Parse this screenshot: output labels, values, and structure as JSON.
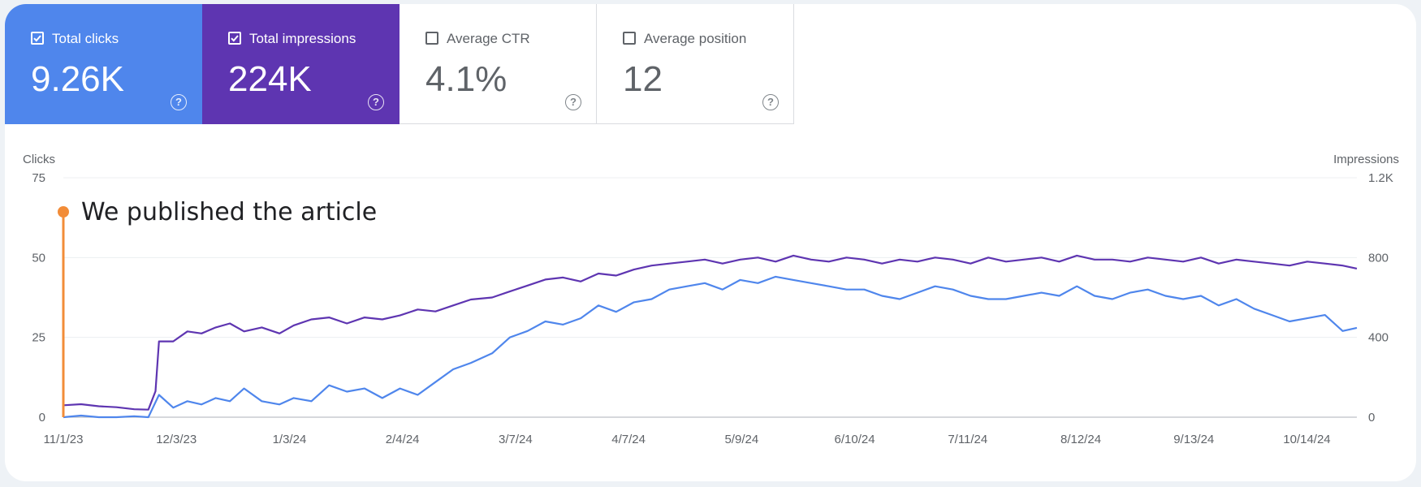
{
  "metrics": [
    {
      "label": "Total clicks",
      "value": "9.26K",
      "selected": true,
      "color": "#4f86ec"
    },
    {
      "label": "Total impressions",
      "value": "224K",
      "selected": true,
      "color": "#5e35b1"
    },
    {
      "label": "Average CTR",
      "value": "4.1%",
      "selected": false
    },
    {
      "label": "Average position",
      "value": "12",
      "selected": false
    }
  ],
  "help_glyph": "?",
  "chart_data": {
    "type": "line",
    "title": "",
    "left_axis": {
      "label": "Clicks",
      "ticks": [
        "0",
        "25",
        "50",
        "75"
      ],
      "range": [
        0,
        75
      ]
    },
    "right_axis": {
      "label": "Impressions",
      "ticks": [
        "0",
        "400",
        "800",
        "1.2K"
      ],
      "range": [
        0,
        1200
      ]
    },
    "x_ticks": [
      "11/1/23",
      "12/3/23",
      "1/3/24",
      "2/4/24",
      "3/7/24",
      "4/7/24",
      "5/9/24",
      "6/10/24",
      "7/11/24",
      "8/12/24",
      "9/13/24",
      "10/14/24"
    ],
    "x_range": [
      "2023-11-01",
      "2024-10-31"
    ],
    "annotation": {
      "date": "2023-11-01",
      "text": "We published the article",
      "color": "#f28c38"
    },
    "series": [
      {
        "name": "Total impressions",
        "axis": "right",
        "color": "#5e35b1",
        "points": [
          [
            "2023-11-01",
            60
          ],
          [
            "2023-11-06",
            65
          ],
          [
            "2023-11-11",
            55
          ],
          [
            "2023-11-16",
            50
          ],
          [
            "2023-11-21",
            40
          ],
          [
            "2023-11-25",
            38
          ],
          [
            "2023-11-27",
            130
          ],
          [
            "2023-11-28",
            380
          ],
          [
            "2023-12-02",
            380
          ],
          [
            "2023-12-06",
            430
          ],
          [
            "2023-12-10",
            420
          ],
          [
            "2023-12-14",
            450
          ],
          [
            "2023-12-18",
            470
          ],
          [
            "2023-12-22",
            430
          ],
          [
            "2023-12-27",
            450
          ],
          [
            "2024-01-01",
            420
          ],
          [
            "2024-01-05",
            460
          ],
          [
            "2024-01-10",
            490
          ],
          [
            "2024-01-15",
            500
          ],
          [
            "2024-01-20",
            470
          ],
          [
            "2024-01-25",
            500
          ],
          [
            "2024-01-30",
            490
          ],
          [
            "2024-02-04",
            510
          ],
          [
            "2024-02-09",
            540
          ],
          [
            "2024-02-14",
            530
          ],
          [
            "2024-02-19",
            560
          ],
          [
            "2024-02-24",
            590
          ],
          [
            "2024-03-01",
            600
          ],
          [
            "2024-03-06",
            630
          ],
          [
            "2024-03-11",
            660
          ],
          [
            "2024-03-16",
            690
          ],
          [
            "2024-03-21",
            700
          ],
          [
            "2024-03-26",
            680
          ],
          [
            "2024-03-31",
            720
          ],
          [
            "2024-04-05",
            710
          ],
          [
            "2024-04-10",
            740
          ],
          [
            "2024-04-15",
            760
          ],
          [
            "2024-04-20",
            770
          ],
          [
            "2024-04-25",
            780
          ],
          [
            "2024-04-30",
            790
          ],
          [
            "2024-05-05",
            770
          ],
          [
            "2024-05-10",
            790
          ],
          [
            "2024-05-15",
            800
          ],
          [
            "2024-05-20",
            780
          ],
          [
            "2024-05-25",
            810
          ],
          [
            "2024-05-30",
            790
          ],
          [
            "2024-06-04",
            780
          ],
          [
            "2024-06-09",
            800
          ],
          [
            "2024-06-14",
            790
          ],
          [
            "2024-06-19",
            770
          ],
          [
            "2024-06-24",
            790
          ],
          [
            "2024-06-29",
            780
          ],
          [
            "2024-07-04",
            800
          ],
          [
            "2024-07-09",
            790
          ],
          [
            "2024-07-14",
            770
          ],
          [
            "2024-07-19",
            800
          ],
          [
            "2024-07-24",
            780
          ],
          [
            "2024-07-29",
            790
          ],
          [
            "2024-08-03",
            800
          ],
          [
            "2024-08-08",
            780
          ],
          [
            "2024-08-13",
            810
          ],
          [
            "2024-08-18",
            790
          ],
          [
            "2024-08-23",
            790
          ],
          [
            "2024-08-28",
            780
          ],
          [
            "2024-09-02",
            800
          ],
          [
            "2024-09-07",
            790
          ],
          [
            "2024-09-12",
            780
          ],
          [
            "2024-09-17",
            800
          ],
          [
            "2024-09-22",
            770
          ],
          [
            "2024-09-27",
            790
          ],
          [
            "2024-10-02",
            780
          ],
          [
            "2024-10-07",
            770
          ],
          [
            "2024-10-12",
            760
          ],
          [
            "2024-10-17",
            780
          ],
          [
            "2024-10-22",
            770
          ],
          [
            "2024-10-27",
            760
          ],
          [
            "2024-10-31",
            745
          ]
        ]
      },
      {
        "name": "Total clicks",
        "axis": "left",
        "color": "#4f86ec",
        "points": [
          [
            "2023-11-01",
            0
          ],
          [
            "2023-11-06",
            0.5
          ],
          [
            "2023-11-11",
            0
          ],
          [
            "2023-11-16",
            0
          ],
          [
            "2023-11-21",
            0.3
          ],
          [
            "2023-11-25",
            0
          ],
          [
            "2023-11-28",
            7
          ],
          [
            "2023-12-02",
            3
          ],
          [
            "2023-12-06",
            5
          ],
          [
            "2023-12-10",
            4
          ],
          [
            "2023-12-14",
            6
          ],
          [
            "2023-12-18",
            5
          ],
          [
            "2023-12-22",
            9
          ],
          [
            "2023-12-27",
            5
          ],
          [
            "2024-01-01",
            4
          ],
          [
            "2024-01-05",
            6
          ],
          [
            "2024-01-10",
            5
          ],
          [
            "2024-01-15",
            10
          ],
          [
            "2024-01-20",
            8
          ],
          [
            "2024-01-25",
            9
          ],
          [
            "2024-01-30",
            6
          ],
          [
            "2024-02-04",
            9
          ],
          [
            "2024-02-09",
            7
          ],
          [
            "2024-02-14",
            11
          ],
          [
            "2024-02-19",
            15
          ],
          [
            "2024-02-24",
            17
          ],
          [
            "2024-03-01",
            20
          ],
          [
            "2024-03-06",
            25
          ],
          [
            "2024-03-11",
            27
          ],
          [
            "2024-03-16",
            30
          ],
          [
            "2024-03-21",
            29
          ],
          [
            "2024-03-26",
            31
          ],
          [
            "2024-03-31",
            35
          ],
          [
            "2024-04-05",
            33
          ],
          [
            "2024-04-10",
            36
          ],
          [
            "2024-04-15",
            37
          ],
          [
            "2024-04-20",
            40
          ],
          [
            "2024-04-25",
            41
          ],
          [
            "2024-04-30",
            42
          ],
          [
            "2024-05-05",
            40
          ],
          [
            "2024-05-10",
            43
          ],
          [
            "2024-05-15",
            42
          ],
          [
            "2024-05-20",
            44
          ],
          [
            "2024-05-25",
            43
          ],
          [
            "2024-05-30",
            42
          ],
          [
            "2024-06-04",
            41
          ],
          [
            "2024-06-09",
            40
          ],
          [
            "2024-06-14",
            40
          ],
          [
            "2024-06-19",
            38
          ],
          [
            "2024-06-24",
            37
          ],
          [
            "2024-06-29",
            39
          ],
          [
            "2024-07-04",
            41
          ],
          [
            "2024-07-09",
            40
          ],
          [
            "2024-07-14",
            38
          ],
          [
            "2024-07-19",
            37
          ],
          [
            "2024-07-24",
            37
          ],
          [
            "2024-07-29",
            38
          ],
          [
            "2024-08-03",
            39
          ],
          [
            "2024-08-08",
            38
          ],
          [
            "2024-08-13",
            41
          ],
          [
            "2024-08-18",
            38
          ],
          [
            "2024-08-23",
            37
          ],
          [
            "2024-08-28",
            39
          ],
          [
            "2024-09-02",
            40
          ],
          [
            "2024-09-07",
            38
          ],
          [
            "2024-09-12",
            37
          ],
          [
            "2024-09-17",
            38
          ],
          [
            "2024-09-22",
            35
          ],
          [
            "2024-09-27",
            37
          ],
          [
            "2024-10-02",
            34
          ],
          [
            "2024-10-07",
            32
          ],
          [
            "2024-10-12",
            30
          ],
          [
            "2024-10-17",
            31
          ],
          [
            "2024-10-22",
            32
          ],
          [
            "2024-10-27",
            27
          ],
          [
            "2024-10-31",
            28
          ]
        ]
      }
    ],
    "grid": true,
    "legend": "none"
  }
}
